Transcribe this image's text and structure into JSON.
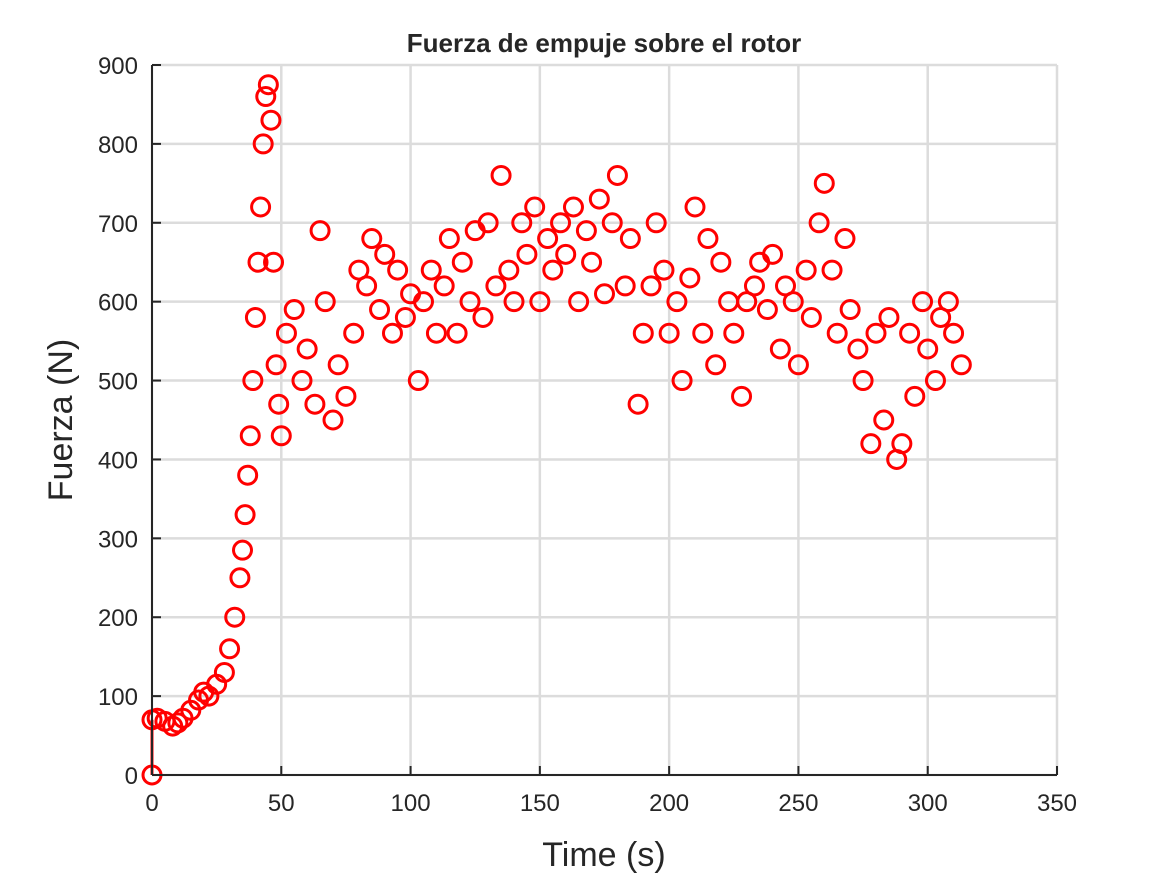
{
  "chart_data": {
    "type": "scatter",
    "title": "Fuerza de empuje sobre el rotor",
    "xlabel": "Time (s)",
    "ylabel": "Fuerza (N)",
    "xlim": [
      0,
      350
    ],
    "ylim": [
      0,
      900
    ],
    "grid": true,
    "marker": "open-circle",
    "xticks": [
      0,
      50,
      100,
      150,
      200,
      250,
      300,
      350
    ],
    "yticks": [
      0,
      100,
      200,
      300,
      400,
      500,
      600,
      700,
      800,
      900
    ],
    "xtick_labels": [
      "0",
      "50",
      "100",
      "150",
      "200",
      "250",
      "300",
      "350"
    ],
    "ytick_labels": [
      "0",
      "100",
      "200",
      "300",
      "400",
      "500",
      "600",
      "700",
      "800",
      "900"
    ],
    "series": [
      {
        "color": "#ff0000",
        "x": [
          0,
          0,
          2,
          5,
          8,
          10,
          12,
          15,
          18,
          20,
          22,
          25,
          28,
          30,
          32,
          34,
          35,
          36,
          37,
          38,
          39,
          40,
          41,
          42,
          43,
          44,
          45,
          46,
          47,
          48,
          49,
          50,
          52,
          55,
          58,
          60,
          63,
          65,
          67,
          70,
          72,
          75,
          78,
          80,
          83,
          85,
          88,
          90,
          93,
          95,
          98,
          100,
          103,
          105,
          108,
          110,
          113,
          115,
          118,
          120,
          123,
          125,
          128,
          130,
          133,
          135,
          138,
          140,
          143,
          145,
          148,
          150,
          153,
          155,
          158,
          160,
          163,
          165,
          168,
          170,
          173,
          175,
          178,
          180,
          183,
          185,
          188,
          190,
          193,
          195,
          198,
          200,
          203,
          205,
          208,
          210,
          213,
          215,
          218,
          220,
          223,
          225,
          228,
          230,
          233,
          235,
          238,
          240,
          243,
          245,
          248,
          250,
          253,
          255,
          258,
          260,
          263,
          265,
          268,
          270,
          273,
          275,
          278,
          280,
          283,
          285,
          288,
          290,
          293,
          295,
          298,
          300,
          303,
          305,
          308,
          310,
          313
        ],
        "y": [
          0,
          70,
          72,
          68,
          62,
          66,
          72,
          82,
          95,
          105,
          100,
          115,
          130,
          160,
          200,
          250,
          285,
          330,
          380,
          430,
          500,
          580,
          650,
          720,
          800,
          860,
          875,
          830,
          650,
          520,
          470,
          430,
          560,
          590,
          500,
          540,
          470,
          690,
          600,
          450,
          520,
          480,
          560,
          640,
          620,
          680,
          590,
          660,
          560,
          640,
          580,
          610,
          500,
          600,
          640,
          560,
          620,
          680,
          560,
          650,
          600,
          690,
          580,
          700,
          620,
          760,
          640,
          600,
          700,
          660,
          720,
          600,
          680,
          640,
          700,
          660,
          720,
          600,
          690,
          650,
          730,
          610,
          700,
          760,
          620,
          680,
          470,
          560,
          620,
          700,
          640,
          560,
          600,
          500,
          630,
          720,
          560,
          680,
          520,
          650,
          600,
          560,
          480,
          600,
          620,
          650,
          590,
          660,
          540,
          620,
          600,
          520,
          640,
          580,
          700,
          750,
          640,
          560,
          680,
          590,
          540,
          500,
          420,
          560,
          450,
          580,
          400,
          420,
          560,
          480,
          600,
          540,
          500,
          580,
          600,
          560,
          520
        ]
      }
    ]
  }
}
